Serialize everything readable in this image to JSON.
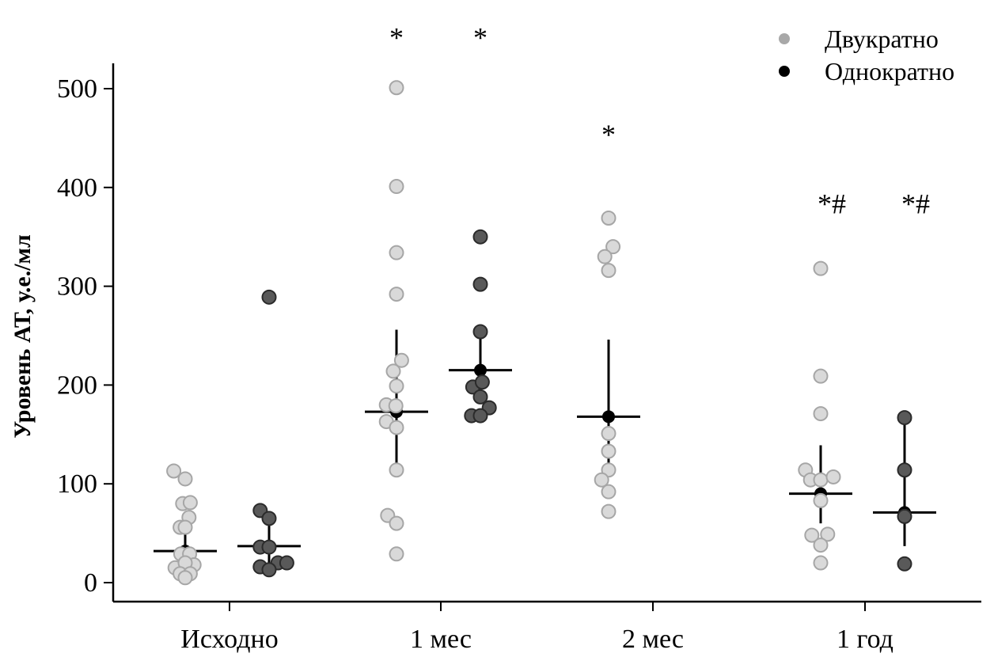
{
  "chart_data": {
    "type": "scatter",
    "title": "",
    "xlabel": "",
    "ylabel": "Уровень АТ, у.е./мл",
    "ylim": [
      -18,
      527
    ],
    "yticks": [
      0,
      100,
      200,
      300,
      400,
      500
    ],
    "categories": [
      "Исходно",
      "1 мес",
      "2 мес",
      "1 год"
    ],
    "legend": {
      "position": "top-right"
    },
    "colors": {
      "Двукратно": {
        "fill": "#d9d9d9",
        "stroke": "#a6a6a6",
        "legend": "#a8a8a8"
      },
      "Однократно": {
        "fill": "#595959",
        "stroke": "#2b2b2b",
        "legend": "#000000"
      },
      "summary": "#000000"
    },
    "series": [
      {
        "name": "Двукратно",
        "groups": [
          {
            "category": "Исходно",
            "summary": {
              "median": 32,
              "lower": 17,
              "upper": 53
            },
            "points": [
              {
                "dx": -1.8,
                "y": 113
              },
              {
                "dx": 0.0,
                "y": 105
              },
              {
                "dx": -0.4,
                "y": 80
              },
              {
                "dx": 0.8,
                "y": 81
              },
              {
                "dx": 0.6,
                "y": 66
              },
              {
                "dx": -0.8,
                "y": 56
              },
              {
                "dx": 0.0,
                "y": 56
              },
              {
                "dx": -0.7,
                "y": 29
              },
              {
                "dx": 0.7,
                "y": 29
              },
              {
                "dx": -1.6,
                "y": 15
              },
              {
                "dx": 1.4,
                "y": 18
              },
              {
                "dx": 0.0,
                "y": 20
              },
              {
                "dx": -0.8,
                "y": 9
              },
              {
                "dx": 0.8,
                "y": 9
              },
              {
                "dx": 0.0,
                "y": 5
              }
            ]
          },
          {
            "category": "1 мес",
            "summary": {
              "median": 173,
              "lower": 118,
              "upper": 256
            },
            "points": [
              {
                "dx": 0.0,
                "y": 501
              },
              {
                "dx": 0.0,
                "y": 401
              },
              {
                "dx": 0.0,
                "y": 334
              },
              {
                "dx": 0.0,
                "y": 292
              },
              {
                "dx": 0.8,
                "y": 225
              },
              {
                "dx": -0.5,
                "y": 214
              },
              {
                "dx": 0.0,
                "y": 199
              },
              {
                "dx": -1.6,
                "y": 180
              },
              {
                "dx": -0.1,
                "y": 179
              },
              {
                "dx": -1.6,
                "y": 163
              },
              {
                "dx": 0.0,
                "y": 157
              },
              {
                "dx": 0.0,
                "y": 114
              },
              {
                "dx": -1.4,
                "y": 68
              },
              {
                "dx": 0.0,
                "y": 60
              },
              {
                "dx": 0.0,
                "y": 29
              }
            ]
          },
          {
            "category": "2 мес",
            "summary": {
              "median": 168,
              "lower": 121,
              "upper": 246
            },
            "points": [
              {
                "dx": 0.0,
                "y": 369
              },
              {
                "dx": 0.7,
                "y": 340
              },
              {
                "dx": -0.6,
                "y": 330
              },
              {
                "dx": 0.0,
                "y": 316
              },
              {
                "dx": 0.0,
                "y": 151
              },
              {
                "dx": 0.0,
                "y": 133
              },
              {
                "dx": 0.0,
                "y": 114
              },
              {
                "dx": -1.1,
                "y": 104
              },
              {
                "dx": 0.0,
                "y": 92
              },
              {
                "dx": 0.0,
                "y": 72
              }
            ]
          },
          {
            "category": "1 год",
            "summary": {
              "median": 90,
              "lower": 60,
              "upper": 139
            },
            "points": [
              {
                "dx": 0.0,
                "y": 318
              },
              {
                "dx": 0.0,
                "y": 209
              },
              {
                "dx": 0.0,
                "y": 171
              },
              {
                "dx": -2.4,
                "y": 114
              },
              {
                "dx": -1.6,
                "y": 104
              },
              {
                "dx": 0.0,
                "y": 104
              },
              {
                "dx": 2.0,
                "y": 107
              },
              {
                "dx": 0.0,
                "y": 83
              },
              {
                "dx": -1.4,
                "y": 48
              },
              {
                "dx": 1.1,
                "y": 49
              },
              {
                "dx": 0.0,
                "y": 38
              },
              {
                "dx": 0.0,
                "y": 20
              }
            ]
          }
        ]
      },
      {
        "name": "Однократно",
        "groups": [
          {
            "category": "Исходно",
            "summary": {
              "median": 37,
              "lower": 20,
              "upper": 63
            },
            "points": [
              {
                "dx": 0.0,
                "y": 289
              },
              {
                "dx": -1.4,
                "y": 73
              },
              {
                "dx": 0.0,
                "y": 65
              },
              {
                "dx": -1.4,
                "y": 36
              },
              {
                "dx": 0.0,
                "y": 36
              },
              {
                "dx": -1.4,
                "y": 16
              },
              {
                "dx": 1.4,
                "y": 20
              },
              {
                "dx": 2.8,
                "y": 20
              },
              {
                "dx": 0.0,
                "y": 13
              }
            ]
          },
          {
            "category": "1 мес",
            "summary": {
              "median": 215,
              "lower": 185,
              "upper": 250
            },
            "points": [
              {
                "dx": 0.0,
                "y": 350
              },
              {
                "dx": 0.0,
                "y": 302
              },
              {
                "dx": 0.0,
                "y": 254
              },
              {
                "dx": -1.2,
                "y": 198
              },
              {
                "dx": 0.3,
                "y": 203
              },
              {
                "dx": 0.0,
                "y": 188
              },
              {
                "dx": 1.4,
                "y": 177
              },
              {
                "dx": -1.4,
                "y": 169
              },
              {
                "dx": 0.0,
                "y": 169
              }
            ]
          },
          {
            "category": "1 год",
            "summary": {
              "median": 71,
              "lower": 37,
              "upper": 162
            },
            "points": [
              {
                "dx": 0.0,
                "y": 167
              },
              {
                "dx": 0.0,
                "y": 114
              },
              {
                "dx": 0.0,
                "y": 67
              },
              {
                "dx": 0.0,
                "y": 19
              }
            ]
          }
        ]
      }
    ],
    "annotations": [
      {
        "category": "1 мес",
        "series": "Двукратно",
        "text": "*",
        "y": 558
      },
      {
        "category": "1 мес",
        "series": "Однократно",
        "text": "*",
        "y": 558
      },
      {
        "category": "2 мес",
        "series": "Двукратно",
        "text": "*",
        "y": 460
      },
      {
        "category": "1 год",
        "series": "Двукратно",
        "text": "*#",
        "y": 390
      },
      {
        "category": "1 год",
        "series": "Однократно",
        "text": "*#",
        "y": 390
      }
    ]
  }
}
